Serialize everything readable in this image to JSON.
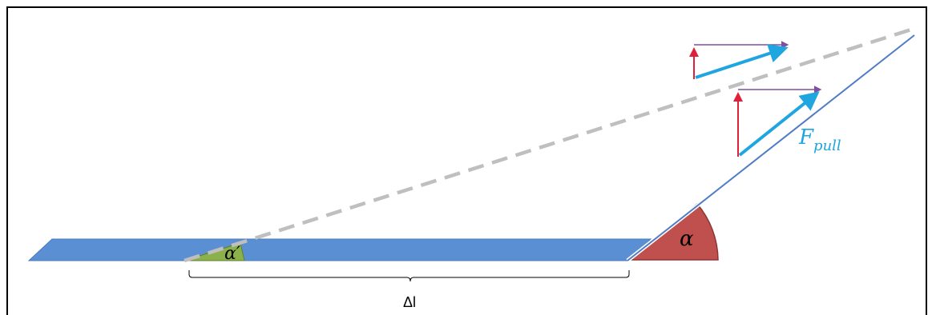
{
  "labels": {
    "alpha": "α",
    "alpha_prime": "α′",
    "force_main": "F",
    "force_sub": "pull",
    "delta_l": "Δl"
  },
  "colors": {
    "strip_fill": "#5b8fd4",
    "strip_stroke": "#4a7bbf",
    "pull_line": "#4f7cc4",
    "dashed_line": "#bfbfbf",
    "alpha_sector": "#c0504d",
    "alpha_sector_stroke": "#8c3532",
    "alpha_prime_fill": "#8ab14a",
    "alpha_prime_stroke": "#5f7f2d",
    "force_arrow": "#1fa6e0",
    "vertical_component": "#e0203a",
    "horizontal_component": "#7f4fa0",
    "brace": "#000000",
    "frame": "#000000"
  }
}
